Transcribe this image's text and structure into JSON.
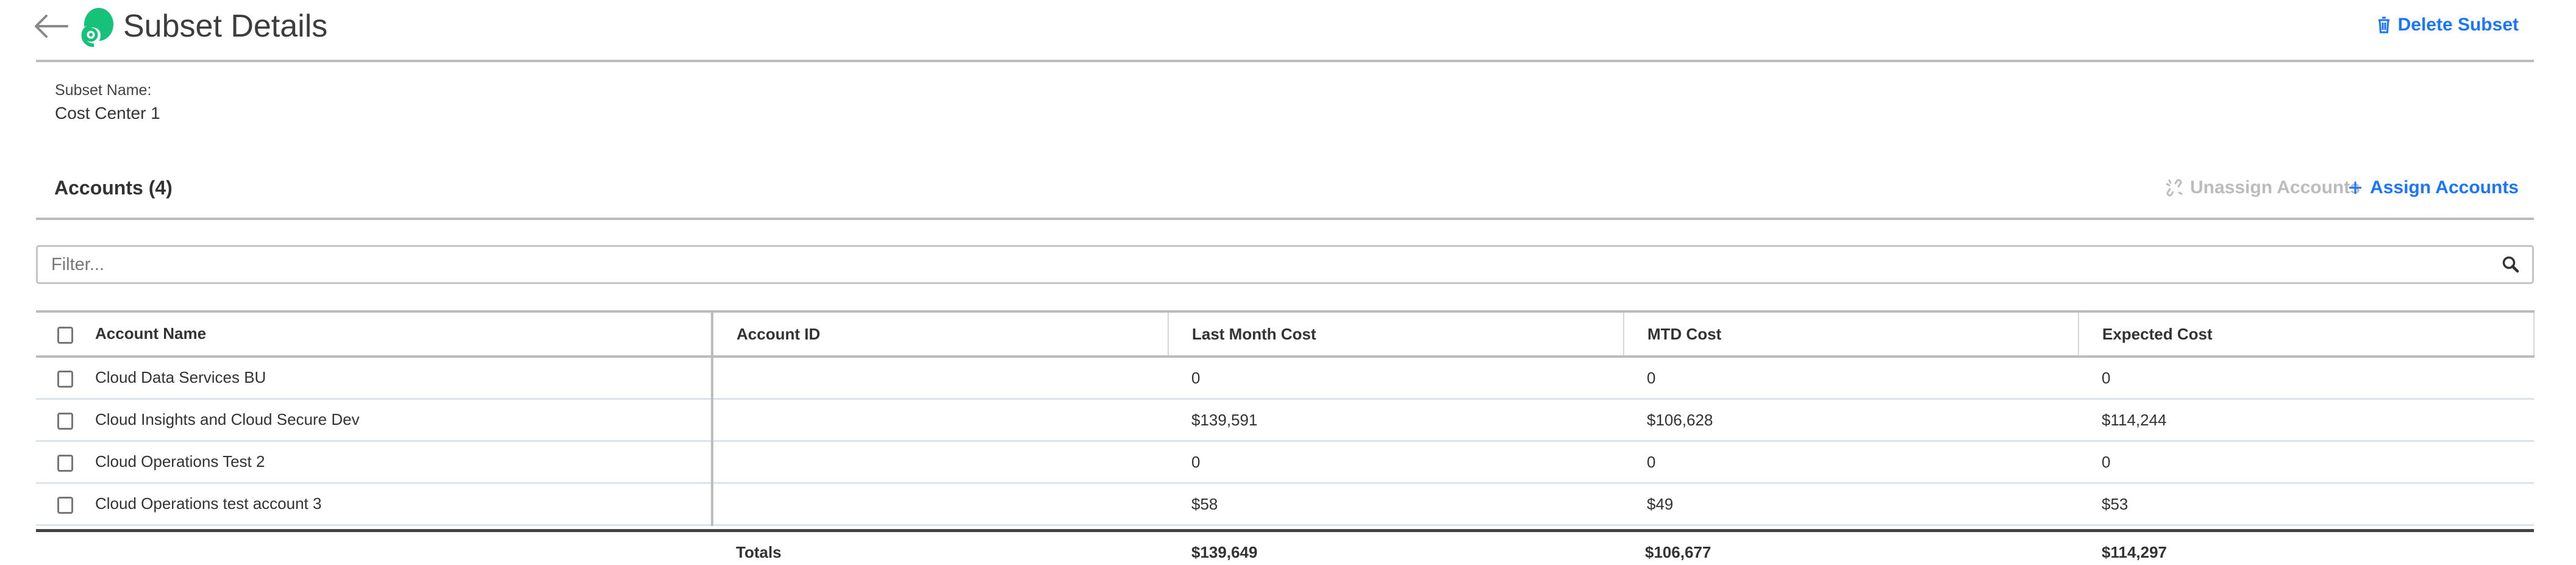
{
  "header": {
    "title": "Subset Details",
    "back_icon": "arrow-left-icon",
    "logo_icon": "green-swirl-logo",
    "delete_label": "Delete Subset"
  },
  "subset": {
    "name_label": "Subset Name:",
    "name_value": "Cost Center 1"
  },
  "accounts": {
    "title": "Accounts (4)",
    "unassign_label": "Unassign Accounts",
    "assign_label": "Assign Accounts"
  },
  "filter": {
    "placeholder": "Filter..."
  },
  "table": {
    "columns": [
      "Account Name",
      "Account ID",
      "Last Month Cost",
      "MTD Cost",
      "Expected Cost"
    ],
    "rows": [
      {
        "name": "Cloud Data Services BU",
        "id": "",
        "last_month": "0",
        "mtd": "0",
        "expected": "0"
      },
      {
        "name": "Cloud Insights and Cloud Secure Dev",
        "id": "",
        "last_month": "$139,591",
        "mtd": "$106,628",
        "expected": "$114,244"
      },
      {
        "name": "Cloud Operations Test 2",
        "id": "",
        "last_month": "0",
        "mtd": "0",
        "expected": "0"
      },
      {
        "name": "Cloud Operations test account 3",
        "id": "",
        "last_month": "$58",
        "mtd": "$49",
        "expected": "$53"
      }
    ],
    "totals": {
      "label": "Totals",
      "last_month": "$139,649",
      "mtd": "$106,677",
      "expected": "$114,297"
    }
  },
  "colors": {
    "accent": "#1a75ff",
    "logo": "#16c27a",
    "disabled": "#bcbcbc"
  }
}
